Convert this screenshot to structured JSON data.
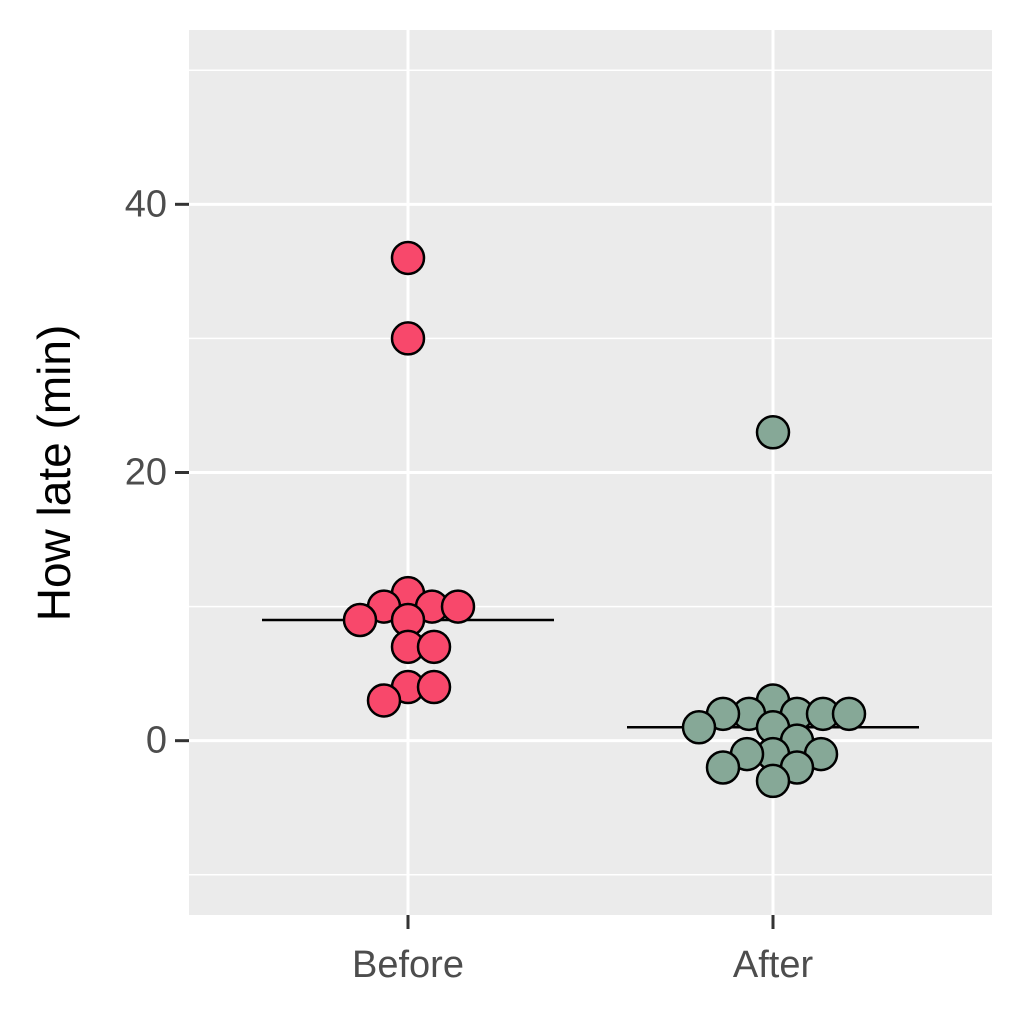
{
  "chart_data": {
    "type": "strip",
    "y_label": "How late (min)",
    "categories": [
      "Before",
      "After"
    ],
    "groups": [
      {
        "color": "#f8486b",
        "median": 9,
        "values": [
          36,
          30,
          11,
          10,
          10,
          10,
          9,
          9,
          7,
          7,
          4,
          4,
          3
        ]
      },
      {
        "color": "#86a897",
        "median": 1,
        "values": [
          23,
          3,
          2,
          2,
          2,
          2,
          2,
          1,
          1,
          0,
          -1,
          -1,
          -1,
          -2,
          -2,
          -3
        ]
      }
    ],
    "ylim": [
      -13,
      53
    ],
    "yticks": [
      0,
      20,
      40
    ],
    "minor_yticks": [
      -10,
      10,
      30,
      50
    ],
    "grid": true
  }
}
